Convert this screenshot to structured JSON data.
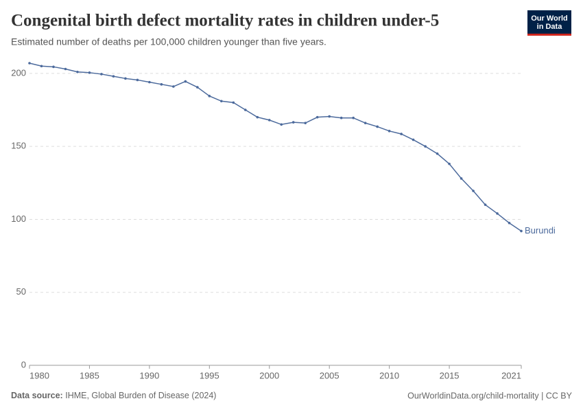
{
  "chart_data": {
    "type": "line",
    "title": "Congenital birth defect mortality rates in children under-5",
    "subtitle": "Estimated number of deaths per 100,000 children younger than five years.",
    "logo": [
      "Our World",
      "in Data"
    ],
    "source_label": "Data source:",
    "source": "IHME, Global Burden of Disease (2024)",
    "footer_right": "OurWorldinData.org/child-mortality | CC BY",
    "x": [
      1980,
      1981,
      1982,
      1983,
      1984,
      1985,
      1986,
      1987,
      1988,
      1989,
      1990,
      1991,
      1992,
      1993,
      1994,
      1995,
      1996,
      1997,
      1998,
      1999,
      2000,
      2001,
      2002,
      2003,
      2004,
      2005,
      2006,
      2007,
      2008,
      2009,
      2010,
      2011,
      2012,
      2013,
      2014,
      2015,
      2016,
      2017,
      2018,
      2019,
      2020,
      2021
    ],
    "series": [
      {
        "name": "Burundi",
        "color": "#4c6a9c",
        "values": [
          207,
          205,
          204.5,
          203,
          201,
          200.5,
          199.5,
          198,
          196.5,
          195.5,
          194,
          192.5,
          191,
          194.5,
          190.5,
          184.5,
          181,
          180,
          175,
          170,
          168,
          165,
          166.5,
          166,
          170,
          170.5,
          169.5,
          169.5,
          166,
          163.5,
          160.5,
          158.5,
          154.5,
          150,
          145,
          138,
          128,
          119.5,
          110,
          104,
          97.5,
          92
        ]
      }
    ],
    "xlim": [
      1980,
      2021
    ],
    "xticks": [
      1980,
      1985,
      1990,
      1995,
      2000,
      2005,
      2010,
      2015,
      2021
    ],
    "ylim": [
      0,
      207
    ],
    "yticks": [
      0,
      50,
      100,
      150,
      200
    ],
    "grid": true
  }
}
